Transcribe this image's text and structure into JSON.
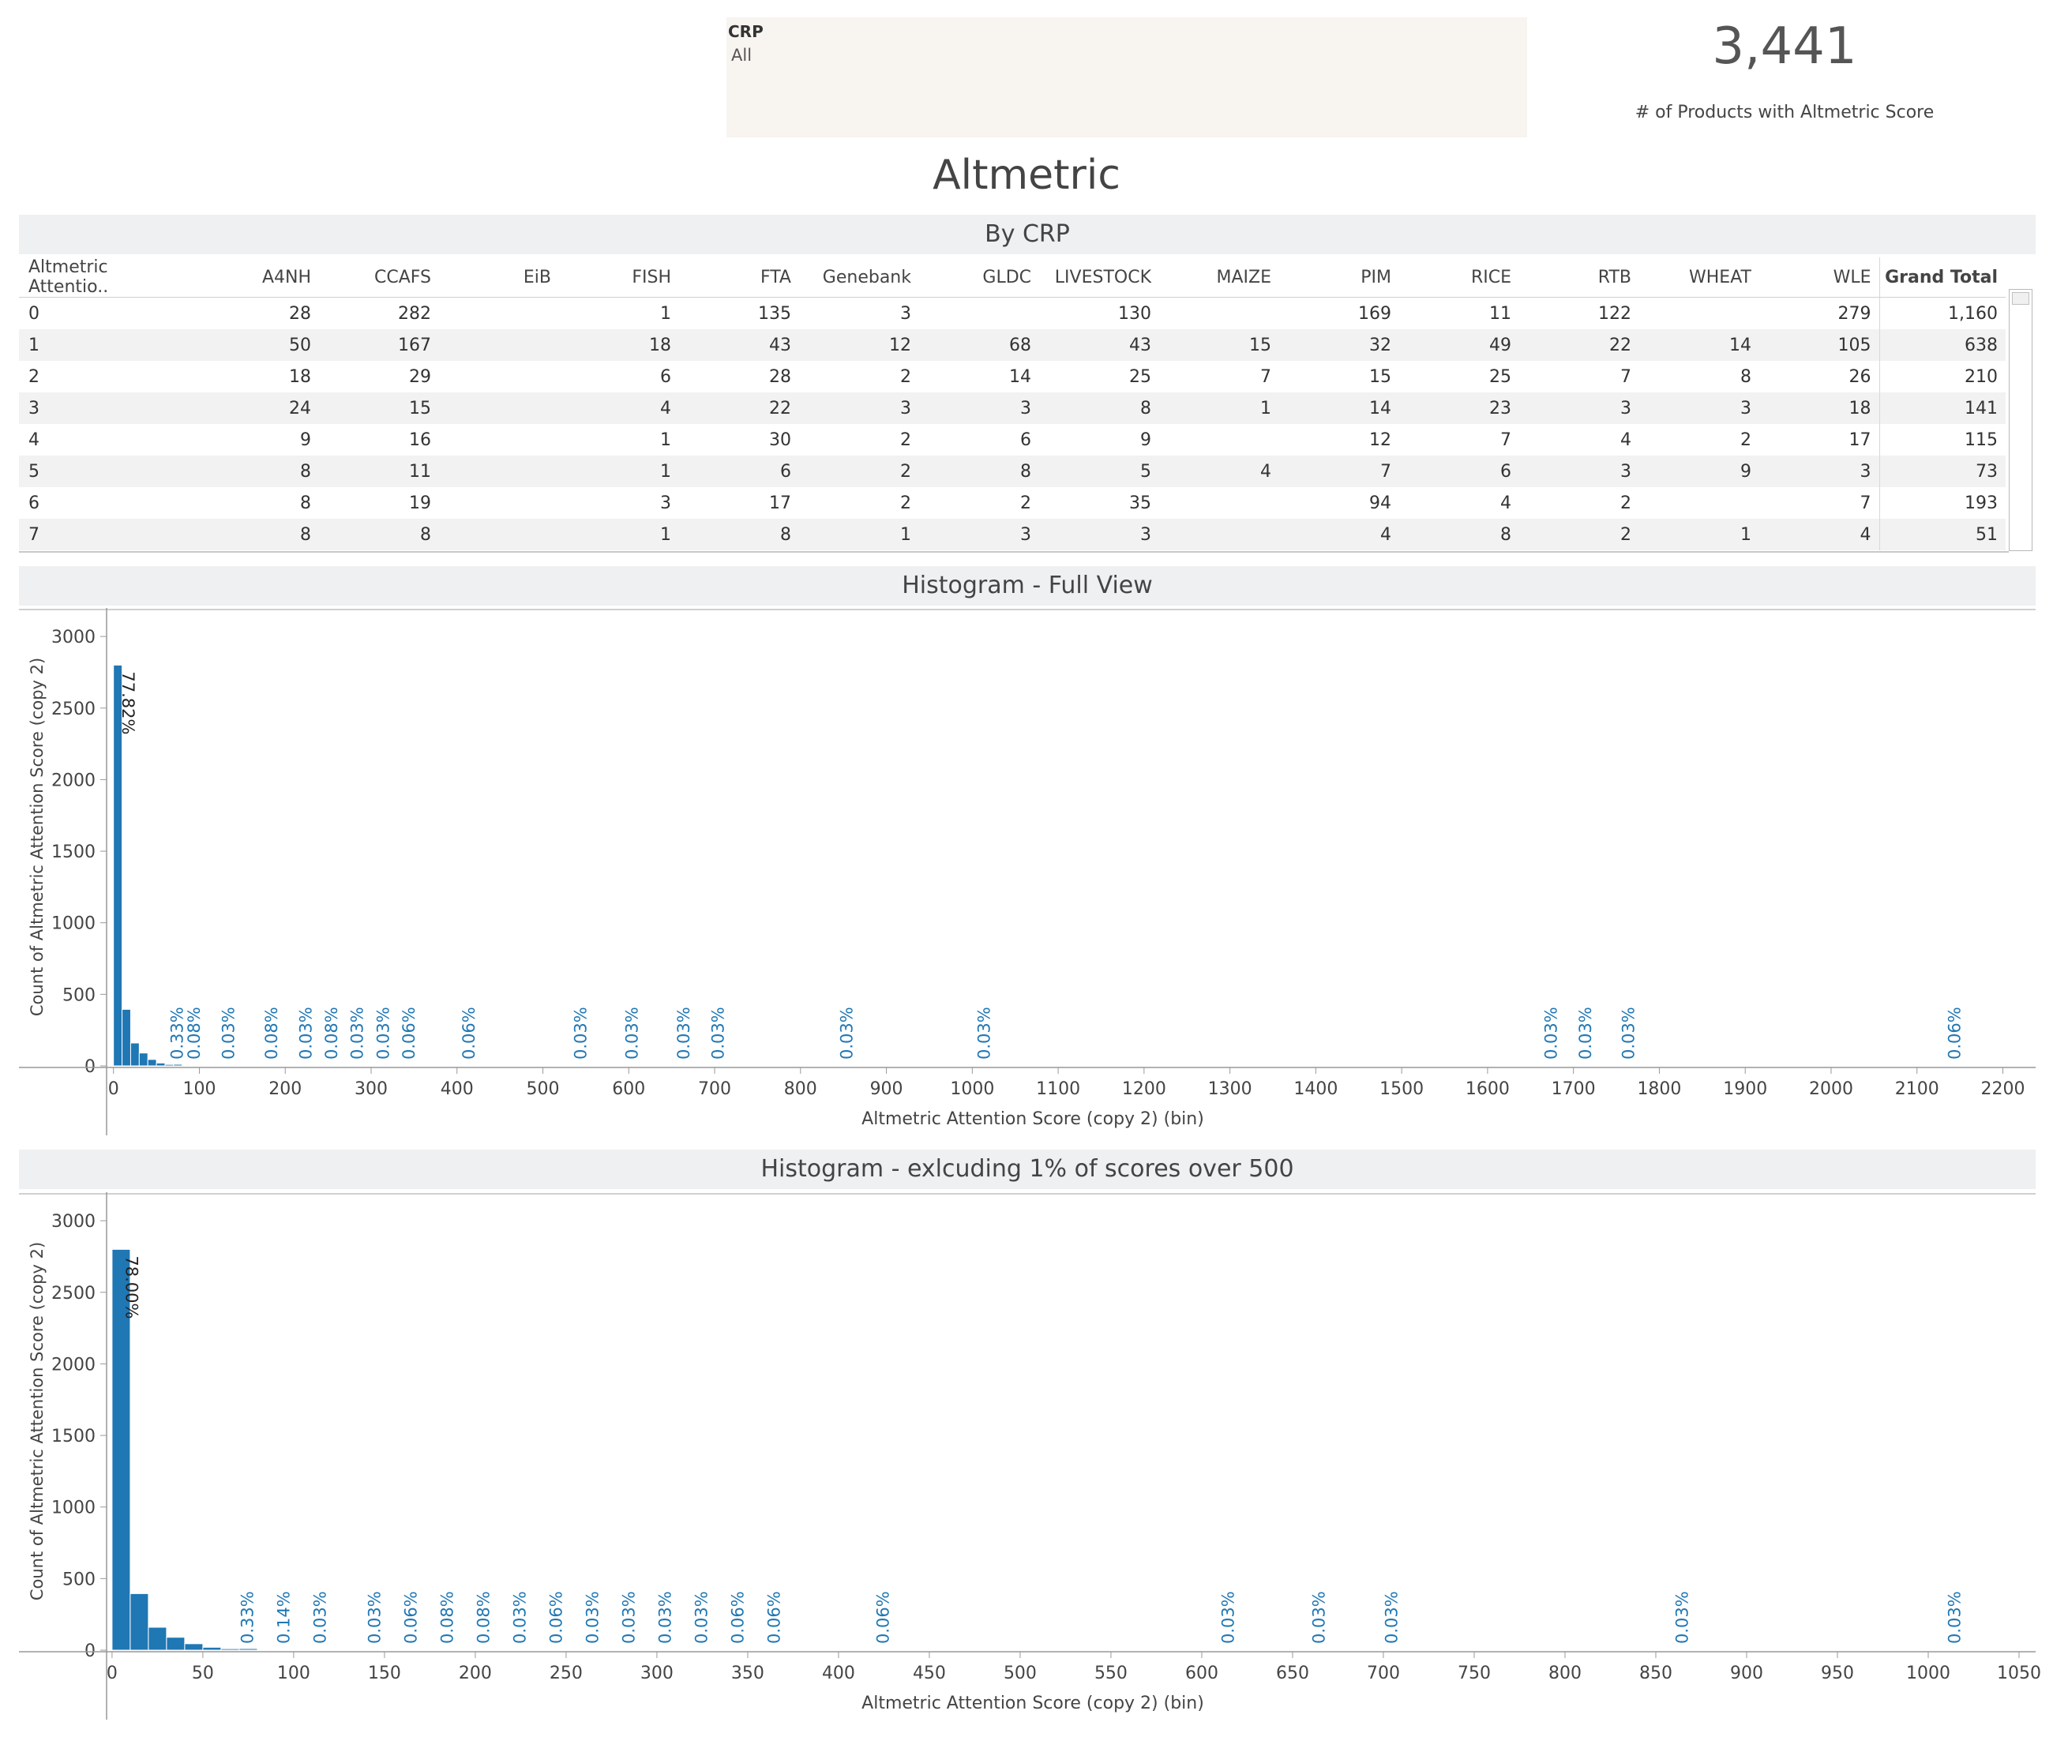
{
  "filter": {
    "title": "CRP",
    "value": "All"
  },
  "kpi": {
    "value": "3,441",
    "label": "# of Products with Altmetric Score"
  },
  "page_title": "Altmetric",
  "sections": {
    "by_crp": "By CRP",
    "hist_full": "Histogram - Full View",
    "hist_excl": "Histogram - exlcuding 1% of scores over 500"
  },
  "table": {
    "columns": [
      "Altmetric Attentio..",
      "A4NH",
      "CCAFS",
      "EiB",
      "FISH",
      "FTA",
      "Genebank",
      "GLDC",
      "LIVESTOCK",
      "MAIZE",
      "PIM",
      "RICE",
      "RTB",
      "WHEAT",
      "WLE",
      "Grand Total"
    ],
    "rows": [
      [
        "0",
        "28",
        "282",
        "",
        "1",
        "135",
        "3",
        "",
        "130",
        "",
        "169",
        "11",
        "122",
        "",
        "279",
        "1,160"
      ],
      [
        "1",
        "50",
        "167",
        "",
        "18",
        "43",
        "12",
        "68",
        "43",
        "15",
        "32",
        "49",
        "22",
        "14",
        "105",
        "638"
      ],
      [
        "2",
        "18",
        "29",
        "",
        "6",
        "28",
        "2",
        "14",
        "25",
        "7",
        "15",
        "25",
        "7",
        "8",
        "26",
        "210"
      ],
      [
        "3",
        "24",
        "15",
        "",
        "4",
        "22",
        "3",
        "3",
        "8",
        "1",
        "14",
        "23",
        "3",
        "3",
        "18",
        "141"
      ],
      [
        "4",
        "9",
        "16",
        "",
        "1",
        "30",
        "2",
        "6",
        "9",
        "",
        "12",
        "7",
        "4",
        "2",
        "17",
        "115"
      ],
      [
        "5",
        "8",
        "11",
        "",
        "1",
        "6",
        "2",
        "8",
        "5",
        "4",
        "7",
        "6",
        "3",
        "9",
        "3",
        "73"
      ],
      [
        "6",
        "8",
        "19",
        "",
        "3",
        "17",
        "2",
        "2",
        "35",
        "",
        "94",
        "4",
        "2",
        "",
        "7",
        "193"
      ],
      [
        "7",
        "8",
        "8",
        "",
        "1",
        "8",
        "1",
        "3",
        "3",
        "",
        "4",
        "8",
        "2",
        "1",
        "4",
        "51"
      ]
    ]
  },
  "colors": {
    "bar": "#1f77b4",
    "label": "#1f77b4",
    "axis": "#999999",
    "header_bg": "#eef0f2",
    "filter_bg": "#f8f4f0"
  },
  "chart_data": [
    {
      "type": "bar",
      "title": "Histogram - Full View",
      "xlabel": "Altmetric Attention Score (copy 2) (bin)",
      "ylabel": "Count of Altmetric Attention Score (copy 2)",
      "xlim": [
        -8,
        2240
      ],
      "ylim": [
        0,
        3100
      ],
      "xticks": [
        0,
        100,
        200,
        300,
        400,
        500,
        600,
        700,
        800,
        900,
        1000,
        1100,
        1200,
        1300,
        1400,
        1500,
        1600,
        1700,
        1800,
        1900,
        2000,
        2100,
        2200
      ],
      "yticks": [
        0,
        500,
        1000,
        1500,
        2000,
        2500,
        3000
      ],
      "bin_width": 10,
      "bins": [
        {
          "x": 0,
          "value": 2800,
          "label": "77.82%"
        },
        {
          "x": 10,
          "value": 395
        },
        {
          "x": 20,
          "value": 160
        },
        {
          "x": 30,
          "value": 90
        },
        {
          "x": 40,
          "value": 45
        },
        {
          "x": 50,
          "value": 20
        },
        {
          "x": 60,
          "value": 10
        },
        {
          "x": 70,
          "value": 11,
          "label": "0.33%"
        },
        {
          "x": 90,
          "value": 3,
          "label": "0.08%"
        },
        {
          "x": 130,
          "value": 1,
          "label": "0.03%"
        },
        {
          "x": 180,
          "value": 3,
          "label": "0.08%"
        },
        {
          "x": 220,
          "value": 1,
          "label": "0.03%"
        },
        {
          "x": 250,
          "value": 3,
          "label": "0.08%"
        },
        {
          "x": 280,
          "value": 1,
          "label": "0.03%"
        },
        {
          "x": 310,
          "value": 1,
          "label": "0.03%"
        },
        {
          "x": 340,
          "value": 2,
          "label": "0.06%"
        },
        {
          "x": 410,
          "value": 2,
          "label": "0.06%"
        },
        {
          "x": 540,
          "value": 1,
          "label": "0.03%"
        },
        {
          "x": 600,
          "value": 1,
          "label": "0.03%"
        },
        {
          "x": 660,
          "value": 1,
          "label": "0.03%"
        },
        {
          "x": 700,
          "value": 1,
          "label": "0.03%"
        },
        {
          "x": 850,
          "value": 1,
          "label": "0.03%"
        },
        {
          "x": 1010,
          "value": 1,
          "label": "0.03%"
        },
        {
          "x": 1670,
          "value": 1,
          "label": "0.03%"
        },
        {
          "x": 1710,
          "value": 1,
          "label": "0.03%"
        },
        {
          "x": 1760,
          "value": 1,
          "label": "0.03%"
        },
        {
          "x": 2140,
          "value": 2,
          "label": "0.06%"
        }
      ]
    },
    {
      "type": "bar",
      "title": "Histogram - exlcuding 1% of scores over 500",
      "xlabel": "Altmetric Attention Score (copy 2) (bin)",
      "ylabel": "Count of Altmetric Attention Score (copy 2)",
      "xlim": [
        -3,
        1060
      ],
      "ylim": [
        0,
        3100
      ],
      "xticks": [
        0,
        50,
        100,
        150,
        200,
        250,
        300,
        350,
        400,
        450,
        500,
        550,
        600,
        650,
        700,
        750,
        800,
        850,
        900,
        950,
        1000,
        1050
      ],
      "yticks": [
        0,
        500,
        1000,
        1500,
        2000,
        2500,
        3000
      ],
      "bin_width": 10,
      "bins": [
        {
          "x": 0,
          "value": 2800,
          "label": "78.00%"
        },
        {
          "x": 10,
          "value": 395
        },
        {
          "x": 20,
          "value": 160
        },
        {
          "x": 30,
          "value": 90
        },
        {
          "x": 40,
          "value": 45
        },
        {
          "x": 50,
          "value": 20
        },
        {
          "x": 60,
          "value": 10
        },
        {
          "x": 70,
          "value": 11,
          "label": "0.33%"
        },
        {
          "x": 90,
          "value": 5,
          "label": "0.14%"
        },
        {
          "x": 110,
          "value": 1,
          "label": "0.03%"
        },
        {
          "x": 140,
          "value": 1,
          "label": "0.03%"
        },
        {
          "x": 160,
          "value": 2,
          "label": "0.06%"
        },
        {
          "x": 180,
          "value": 3,
          "label": "0.08%"
        },
        {
          "x": 200,
          "value": 3,
          "label": "0.08%"
        },
        {
          "x": 220,
          "value": 1,
          "label": "0.03%"
        },
        {
          "x": 240,
          "value": 2,
          "label": "0.06%"
        },
        {
          "x": 260,
          "value": 1,
          "label": "0.03%"
        },
        {
          "x": 280,
          "value": 1,
          "label": "0.03%"
        },
        {
          "x": 300,
          "value": 1,
          "label": "0.03%"
        },
        {
          "x": 320,
          "value": 1,
          "label": "0.03%"
        },
        {
          "x": 340,
          "value": 2,
          "label": "0.06%"
        },
        {
          "x": 360,
          "value": 2,
          "label": "0.06%"
        },
        {
          "x": 420,
          "value": 2,
          "label": "0.06%"
        },
        {
          "x": 610,
          "value": 1,
          "label": "0.03%"
        },
        {
          "x": 660,
          "value": 1,
          "label": "0.03%"
        },
        {
          "x": 700,
          "value": 1,
          "label": "0.03%"
        },
        {
          "x": 860,
          "value": 1,
          "label": "0.03%"
        },
        {
          "x": 1010,
          "value": 1,
          "label": "0.03%"
        }
      ]
    }
  ]
}
